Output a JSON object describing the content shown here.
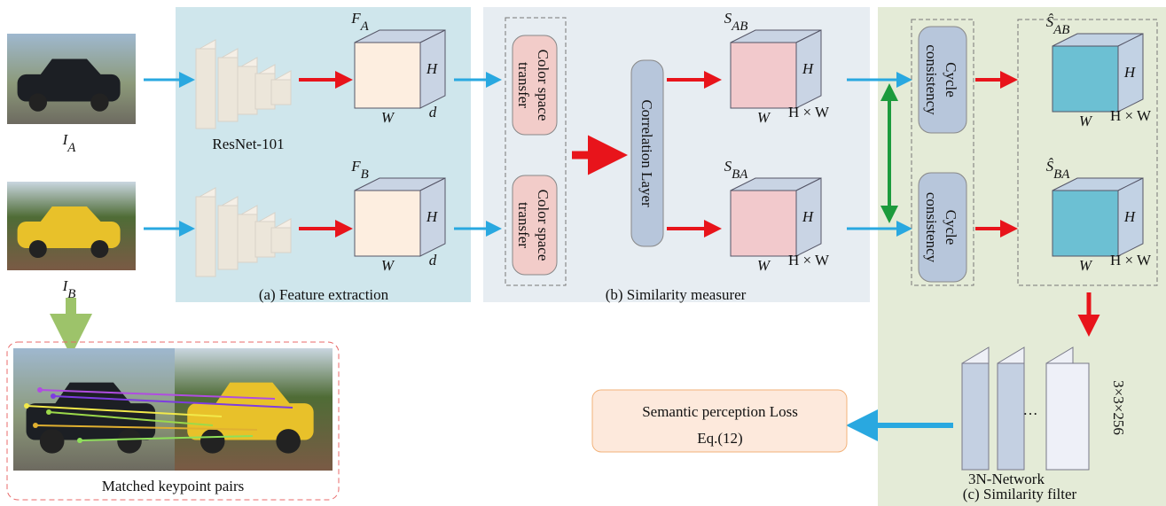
{
  "images": {
    "a": {
      "main": "I",
      "sub": "A"
    },
    "b": {
      "main": "I",
      "sub": "B"
    }
  },
  "backbone": "ResNet-101",
  "cubes": [
    {
      "main": "F",
      "sub": "A",
      "h": "H",
      "w": "W",
      "d": "d"
    },
    {
      "main": "F",
      "sub": "B",
      "h": "H",
      "w": "W",
      "d": "d"
    },
    {
      "main": "S",
      "sub": "AB",
      "h": "H",
      "w": "W",
      "d": "H × W"
    },
    {
      "main": "S",
      "sub": "BA",
      "h": "H",
      "w": "W",
      "d": "H × W"
    },
    {
      "main": "Ŝ",
      "sub": "AB",
      "h": "H",
      "w": "W",
      "d": "H × W"
    },
    {
      "main": "Ŝ",
      "sub": "BA",
      "h": "H",
      "w": "W",
      "d": "H × W"
    }
  ],
  "color_transfer": [
    "Color space transfer",
    "Color space transfer"
  ],
  "correlation": "Correlation Layer",
  "cycle": [
    "Cycle consistency",
    "Cycle consistency"
  ],
  "panels": [
    "(a) Feature extraction",
    "(b) Similarity measurer",
    "(c) Similarity filter"
  ],
  "network": {
    "name": "3N-Network",
    "size": "3×3×256",
    "ellipsis": "…"
  },
  "loss": [
    "Semantic perception Loss",
    "Eq.(12)"
  ],
  "matched": "Matched keypoint pairs"
}
